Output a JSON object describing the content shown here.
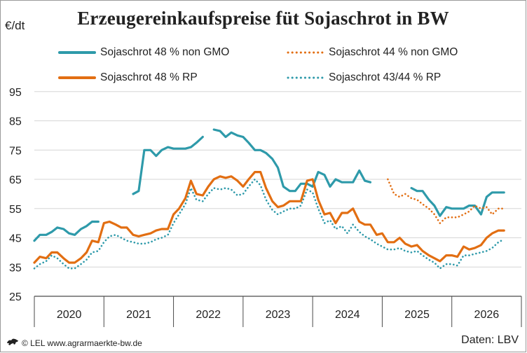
{
  "title": "Erzeugereinkaufspreise füt Sojaschrot in BW",
  "unit": "€/dt",
  "footer": {
    "copyright": "© LEL www.agrarmaerkte-bw.de",
    "source": "Daten: LBV"
  },
  "colors": {
    "teal": "#2e9aaa",
    "orange": "#e26e12",
    "grid": "#d6d6d6",
    "axis": "#4a4a4a"
  },
  "chart_data": {
    "type": "line",
    "title": "Erzeugereinkaufspreise füt Sojaschrot in BW",
    "ylabel": "€/dt",
    "xlabel": "",
    "ylim": [
      25,
      105
    ],
    "yticks": [
      25,
      35,
      45,
      55,
      65,
      75,
      85,
      95
    ],
    "xlim": [
      2020.0,
      2027.0
    ],
    "year_labels": [
      "2020",
      "2021",
      "2022",
      "2023",
      "2024",
      "2025",
      "2026"
    ],
    "grid": true,
    "legend_position": "top",
    "series": [
      {
        "name": "Sojaschrot 48 % non GMO",
        "color": "#2e9aaa",
        "style": "solid",
        "points": [
          [
            2020.0,
            44
          ],
          [
            2020.08,
            46
          ],
          [
            2020.17,
            46
          ],
          [
            2020.25,
            47
          ],
          [
            2020.33,
            48.5
          ],
          [
            2020.42,
            48
          ],
          [
            2020.5,
            46.5
          ],
          [
            2020.58,
            46
          ],
          [
            2020.67,
            48
          ],
          [
            2020.75,
            49
          ],
          [
            2020.83,
            50.5
          ],
          [
            2020.92,
            50.5
          ],
          null,
          [
            2021.42,
            60
          ],
          [
            2021.5,
            61
          ],
          [
            2021.58,
            75
          ],
          [
            2021.67,
            75
          ],
          [
            2021.75,
            73
          ],
          [
            2021.83,
            75
          ],
          [
            2021.92,
            76
          ],
          [
            2022.0,
            75.5
          ],
          [
            2022.08,
            75.5
          ],
          [
            2022.17,
            75.5
          ],
          [
            2022.25,
            76
          ],
          [
            2022.33,
            77.5
          ],
          [
            2022.42,
            79.5
          ],
          null,
          [
            2022.58,
            82
          ],
          [
            2022.67,
            81.5
          ],
          [
            2022.75,
            79.5
          ],
          [
            2022.83,
            81
          ],
          [
            2022.92,
            80
          ],
          [
            2023.0,
            79.5
          ],
          [
            2023.08,
            77.5
          ],
          [
            2023.17,
            75
          ],
          [
            2023.25,
            75
          ],
          [
            2023.33,
            74
          ],
          [
            2023.42,
            72
          ],
          [
            2023.5,
            69
          ],
          [
            2023.58,
            62.5
          ],
          [
            2023.67,
            61
          ],
          [
            2023.75,
            61
          ],
          [
            2023.83,
            63.5
          ],
          [
            2023.92,
            63.5
          ],
          [
            2024.0,
            62.5
          ],
          [
            2024.08,
            67.5
          ],
          [
            2024.17,
            66.5
          ],
          [
            2024.25,
            62.5
          ],
          [
            2024.33,
            65
          ],
          [
            2024.42,
            64
          ],
          [
            2024.5,
            64
          ],
          [
            2024.58,
            64
          ],
          [
            2024.67,
            68
          ],
          [
            2024.75,
            64.5
          ],
          [
            2024.83,
            64
          ],
          null,
          [
            2025.42,
            62
          ],
          [
            2025.5,
            61
          ],
          [
            2025.58,
            61
          ],
          [
            2025.67,
            58
          ],
          [
            2025.75,
            56
          ],
          [
            2025.83,
            52.5
          ],
          [
            2025.92,
            55.5
          ],
          [
            2026.0,
            55
          ],
          [
            2026.08,
            55
          ],
          [
            2026.17,
            55
          ],
          [
            2026.25,
            56
          ],
          [
            2026.33,
            56
          ],
          [
            2026.42,
            53
          ],
          [
            2026.5,
            59
          ],
          [
            2026.58,
            60.5
          ],
          [
            2026.67,
            60.5
          ],
          [
            2026.75,
            60.5
          ]
        ]
      },
      {
        "name": "Sojaschrot 44 % non GMO",
        "color": "#e26e12",
        "style": "dotted",
        "points": [
          [
            2025.08,
            65
          ],
          [
            2025.17,
            60
          ],
          [
            2025.25,
            59
          ],
          [
            2025.33,
            60
          ],
          [
            2025.42,
            58.5
          ],
          [
            2025.5,
            58
          ],
          [
            2025.58,
            56.5
          ],
          [
            2025.67,
            55
          ],
          [
            2025.75,
            53
          ],
          [
            2025.83,
            50
          ],
          [
            2025.92,
            52
          ],
          [
            2026.0,
            52
          ],
          [
            2026.08,
            52
          ],
          [
            2026.17,
            53
          ],
          [
            2026.25,
            54
          ],
          [
            2026.33,
            56
          ],
          [
            2026.42,
            55
          ],
          [
            2026.5,
            55.5
          ],
          [
            2026.58,
            53
          ],
          [
            2026.67,
            55
          ],
          [
            2026.75,
            55
          ]
        ]
      },
      {
        "name": "Sojaschrot 48 % RP",
        "color": "#e26e12",
        "style": "solid",
        "points": [
          [
            2020.0,
            36.5
          ],
          [
            2020.08,
            38.5
          ],
          [
            2020.17,
            38
          ],
          [
            2020.25,
            40
          ],
          [
            2020.33,
            40
          ],
          [
            2020.42,
            38
          ],
          [
            2020.5,
            36.5
          ],
          [
            2020.58,
            36.5
          ],
          [
            2020.67,
            38
          ],
          [
            2020.75,
            40
          ],
          [
            2020.83,
            44
          ],
          [
            2020.92,
            43.5
          ],
          [
            2021.0,
            50
          ],
          [
            2021.08,
            50.5
          ],
          [
            2021.17,
            49.5
          ],
          [
            2021.25,
            48.5
          ],
          [
            2021.33,
            48.5
          ],
          [
            2021.42,
            46
          ],
          [
            2021.5,
            45.5
          ],
          [
            2021.58,
            46
          ],
          [
            2021.67,
            46.5
          ],
          [
            2021.75,
            47.5
          ],
          [
            2021.83,
            48
          ],
          [
            2021.92,
            48
          ],
          [
            2022.0,
            53
          ],
          [
            2022.08,
            55
          ],
          [
            2022.17,
            58.5
          ],
          [
            2022.25,
            64.5
          ],
          [
            2022.33,
            60
          ],
          [
            2022.42,
            59.5
          ],
          [
            2022.5,
            62.5
          ],
          [
            2022.58,
            65
          ],
          [
            2022.67,
            66
          ],
          [
            2022.75,
            65.5
          ],
          [
            2022.83,
            66
          ],
          [
            2022.92,
            64.5
          ],
          [
            2023.0,
            62.5
          ],
          [
            2023.08,
            65
          ],
          [
            2023.17,
            67.5
          ],
          [
            2023.25,
            67.5
          ],
          [
            2023.33,
            62
          ],
          [
            2023.42,
            57.5
          ],
          [
            2023.5,
            55.5
          ],
          [
            2023.58,
            56
          ],
          [
            2023.67,
            57.5
          ],
          [
            2023.75,
            57.5
          ],
          [
            2023.83,
            57.5
          ],
          [
            2023.92,
            64.5
          ],
          [
            2024.0,
            65
          ],
          [
            2024.08,
            58
          ],
          [
            2024.17,
            53
          ],
          [
            2024.25,
            53.5
          ],
          [
            2024.33,
            50
          ],
          [
            2024.42,
            53.5
          ],
          [
            2024.5,
            53.5
          ],
          [
            2024.58,
            55
          ],
          [
            2024.67,
            50.5
          ],
          [
            2024.75,
            49.5
          ],
          [
            2024.83,
            49.5
          ],
          [
            2024.92,
            46
          ],
          [
            2025.0,
            46.5
          ],
          [
            2025.08,
            43.5
          ],
          [
            2025.17,
            43.5
          ],
          [
            2025.25,
            45
          ],
          [
            2025.33,
            43
          ],
          [
            2025.42,
            42
          ],
          [
            2025.5,
            42.5
          ],
          [
            2025.58,
            40.5
          ],
          [
            2025.67,
            39
          ],
          [
            2025.75,
            38
          ],
          [
            2025.83,
            37
          ],
          [
            2025.92,
            39
          ],
          [
            2026.0,
            39
          ],
          [
            2026.08,
            38.5
          ],
          [
            2026.17,
            42
          ],
          [
            2026.25,
            41
          ],
          [
            2026.33,
            41.5
          ],
          [
            2026.42,
            42.5
          ],
          [
            2026.5,
            45
          ],
          [
            2026.58,
            46.5
          ],
          [
            2026.67,
            47.5
          ],
          [
            2026.75,
            47.5
          ]
        ]
      },
      {
        "name": "Sojaschrot 43/44 % RP",
        "color": "#2e9aaa",
        "style": "dotted",
        "points": [
          [
            2020.0,
            34.5
          ],
          [
            2020.08,
            36
          ],
          [
            2020.17,
            37
          ],
          [
            2020.25,
            39
          ],
          [
            2020.33,
            38
          ],
          [
            2020.42,
            36
          ],
          [
            2020.5,
            34.5
          ],
          [
            2020.58,
            34.5
          ],
          [
            2020.67,
            36
          ],
          [
            2020.75,
            37.5
          ],
          [
            2020.83,
            40
          ],
          [
            2020.92,
            40.5
          ],
          [
            2021.0,
            43.5
          ],
          [
            2021.08,
            45.5
          ],
          [
            2021.17,
            46
          ],
          [
            2021.25,
            45
          ],
          [
            2021.33,
            44
          ],
          [
            2021.42,
            43.5
          ],
          [
            2021.5,
            43
          ],
          [
            2021.58,
            43
          ],
          [
            2021.67,
            43.5
          ],
          [
            2021.75,
            44.5
          ],
          [
            2021.83,
            45
          ],
          [
            2021.92,
            46
          ],
          [
            2022.0,
            50
          ],
          [
            2022.08,
            53
          ],
          [
            2022.17,
            56.5
          ],
          [
            2022.25,
            62
          ],
          [
            2022.33,
            58
          ],
          [
            2022.42,
            57.5
          ],
          [
            2022.5,
            60
          ],
          [
            2022.58,
            62
          ],
          [
            2022.67,
            61.5
          ],
          [
            2022.75,
            62
          ],
          [
            2022.83,
            61.5
          ],
          [
            2022.92,
            59.5
          ],
          [
            2023.0,
            60
          ],
          [
            2023.08,
            62.5
          ],
          [
            2023.17,
            65
          ],
          [
            2023.25,
            63
          ],
          [
            2023.33,
            58
          ],
          [
            2023.42,
            54.5
          ],
          [
            2023.5,
            53
          ],
          [
            2023.58,
            54
          ],
          [
            2023.67,
            55
          ],
          [
            2023.75,
            55
          ],
          [
            2023.83,
            56
          ],
          [
            2023.92,
            61.5
          ],
          [
            2024.0,
            60.5
          ],
          [
            2024.08,
            55
          ],
          [
            2024.17,
            50
          ],
          [
            2024.25,
            51
          ],
          [
            2024.33,
            48
          ],
          [
            2024.42,
            49
          ],
          [
            2024.5,
            46.5
          ],
          [
            2024.58,
            49.5
          ],
          [
            2024.67,
            47
          ],
          [
            2024.75,
            45.5
          ],
          [
            2024.83,
            44.5
          ],
          [
            2024.92,
            43
          ],
          [
            2025.0,
            42
          ],
          [
            2025.08,
            41
          ],
          [
            2025.17,
            41
          ],
          [
            2025.25,
            41.5
          ],
          [
            2025.33,
            40.5
          ],
          [
            2025.42,
            40
          ],
          [
            2025.5,
            40.5
          ],
          [
            2025.58,
            39
          ],
          [
            2025.67,
            37.5
          ],
          [
            2025.75,
            36.5
          ],
          [
            2025.83,
            34.5
          ],
          [
            2025.92,
            36
          ],
          [
            2026.0,
            36
          ],
          [
            2026.08,
            35.5
          ],
          [
            2026.17,
            39
          ],
          [
            2026.25,
            39
          ],
          [
            2026.33,
            39.5
          ],
          [
            2026.42,
            40
          ],
          [
            2026.5,
            40.5
          ],
          [
            2026.58,
            41.5
          ],
          [
            2026.67,
            43.5
          ],
          [
            2026.75,
            44.5
          ]
        ]
      }
    ]
  }
}
